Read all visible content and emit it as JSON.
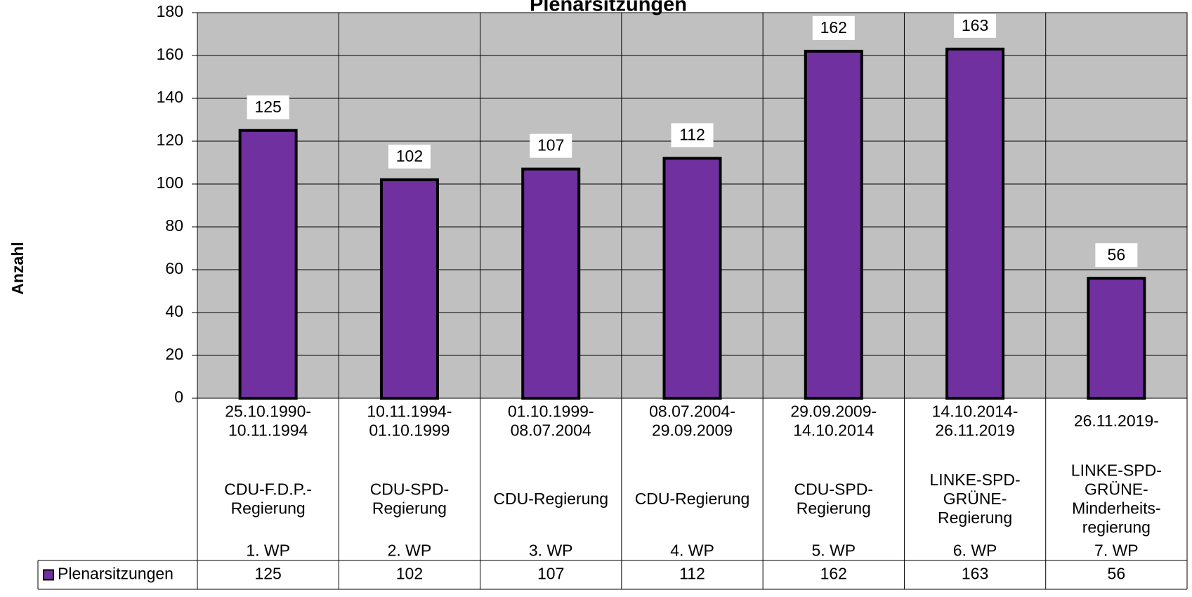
{
  "chart_data": {
    "type": "bar",
    "title": "Plenarsitzungen",
    "y_label": "Anzahl",
    "categories": [
      {
        "date": [
          "25.10.1990-",
          "10.11.1994"
        ],
        "government": [
          "CDU-F.D.P.-",
          "Regierung"
        ],
        "period": "1. WP"
      },
      {
        "date": [
          "10.11.1994-",
          "01.10.1999"
        ],
        "government": [
          "CDU-SPD-",
          "Regierung"
        ],
        "period": "2. WP"
      },
      {
        "date": [
          "01.10.1999-",
          "08.07.2004"
        ],
        "government": [
          "CDU-Regierung"
        ],
        "period": "3. WP"
      },
      {
        "date": [
          "08.07.2004-",
          "29.09.2009"
        ],
        "government": [
          "CDU-Regierung"
        ],
        "period": "4. WP"
      },
      {
        "date": [
          "29.09.2009-",
          "14.10.2014"
        ],
        "government": [
          "CDU-SPD-",
          "Regierung"
        ],
        "period": "5. WP"
      },
      {
        "date": [
          "14.10.2014-",
          "26.11.2019"
        ],
        "government": [
          "LINKE-SPD-",
          "GRÜNE-",
          "Regierung"
        ],
        "period": "6. WP"
      },
      {
        "date": [
          "26.11.2019-"
        ],
        "government": [
          "LINKE-SPD-",
          "GRÜNE-",
          "Minderheits-",
          "regierung"
        ],
        "period": "7. WP"
      }
    ],
    "series": [
      {
        "name": "Plenarsitzungen",
        "color": "#7030a0",
        "values": [
          125,
          102,
          107,
          112,
          162,
          163,
          56
        ]
      }
    ],
    "ylim": [
      0,
      180
    ],
    "yticks": [
      0,
      20,
      40,
      60,
      80,
      100,
      120,
      140,
      160,
      180
    ],
    "grid": true,
    "plot_background": "#c0c0c0"
  }
}
